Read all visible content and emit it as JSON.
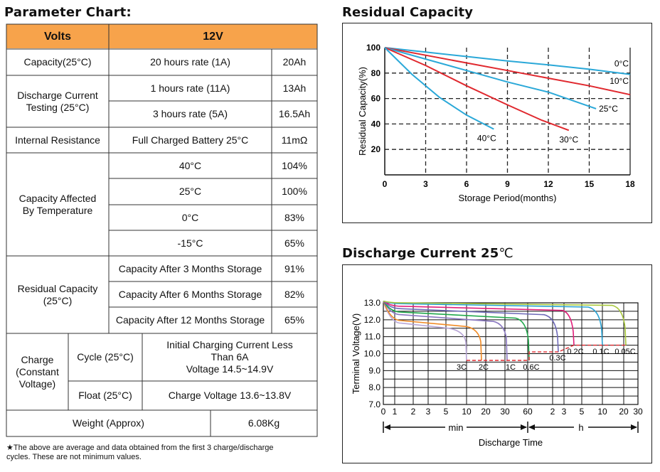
{
  "parameter_chart": {
    "title": "Parameter Chart:",
    "header": {
      "col1": "Volts",
      "col2": "12V"
    },
    "capacity": {
      "label": "Capacity(25°C)",
      "condition": "20 hours rate (1A)",
      "value": "20Ah"
    },
    "discharge_current": {
      "label": "Discharge Current\nTesting (25°C)",
      "rows": [
        {
          "condition": "1 hours rate (11A)",
          "value": "13Ah"
        },
        {
          "condition": "3 hours rate (5A)",
          "value": "16.5Ah"
        }
      ]
    },
    "internal_resistance": {
      "label": "Internal Resistance",
      "condition": "Full Charged Battery 25°C",
      "value": "11mΩ"
    },
    "temperature": {
      "label": "Capacity Affected\nBy Temperature",
      "rows": [
        {
          "condition": "40°C",
          "value": "104%"
        },
        {
          "condition": "25°C",
          "value": "100%"
        },
        {
          "condition": "0°C",
          "value": "83%"
        },
        {
          "condition": "-15°C",
          "value": "65%"
        }
      ]
    },
    "residual": {
      "label": "Residual Capacity\n(25°C)",
      "rows": [
        {
          "condition": "Capacity After 3 Months Storage",
          "value": "91%"
        },
        {
          "condition": "Capacity After 6 Months Storage",
          "value": "82%"
        },
        {
          "condition": "Capacity After 12 Months Storage",
          "value": "65%"
        }
      ]
    },
    "charge": {
      "label": "Charge\n(Constant\nVoltage)",
      "cycle_label": "Cycle (25°C)",
      "cycle_value": "Initial Charging Current Less\nThan 6A\nVoltage 14.5~14.9V",
      "float_label": "Float (25°C)",
      "float_value": "Charge Voltage 13.6~13.8V"
    },
    "weight": {
      "label": "Weight (Approx)",
      "value": "6.08Kg"
    },
    "footnote": "★The above are average and data obtained from the first 3 charge/discharge\n  cycles. These are not minimum values.",
    "colors": {
      "header_bg": "#f7a34b",
      "border": "#333333"
    }
  },
  "chart_data": [
    {
      "type": "line",
      "title": "Residual Capacity",
      "xlabel": "Storage Period(months)",
      "ylabel": "Residual Capacity(%)",
      "xlim": [
        0,
        18
      ],
      "ylim": [
        0,
        100
      ],
      "xticks": [
        0,
        3,
        6,
        9,
        12,
        15,
        18
      ],
      "yticks": [
        20,
        40,
        60,
        80,
        100
      ],
      "grid": "dashed",
      "series": [
        {
          "name": "0°C",
          "color": "#2aa8d8",
          "x": [
            0,
            3,
            6,
            9,
            12,
            15,
            18
          ],
          "y": [
            100,
            96.5,
            93,
            89.5,
            86.5,
            83,
            79
          ]
        },
        {
          "name": "10°C",
          "color": "#e0282e",
          "x": [
            0,
            3,
            6,
            9,
            12,
            15,
            18
          ],
          "y": [
            100,
            94,
            88,
            82,
            76,
            70,
            63
          ]
        },
        {
          "name": "25°C",
          "color": "#2aa8d8",
          "x": [
            0,
            3,
            6,
            9,
            12,
            15.5
          ],
          "y": [
            100,
            91,
            82,
            73,
            65,
            52
          ]
        },
        {
          "name": "30°C",
          "color": "#e0282e",
          "x": [
            0,
            3,
            6,
            9,
            11.5,
            13.5
          ],
          "y": [
            100,
            86,
            70,
            55,
            43,
            35
          ]
        },
        {
          "name": "40°C",
          "color": "#2aa8d8",
          "x": [
            0,
            2,
            4,
            6,
            8
          ],
          "y": [
            100,
            79,
            61,
            47,
            36
          ]
        }
      ]
    },
    {
      "type": "line",
      "title": "Discharge Current 25",
      "title_unit": "℃",
      "xlabel": "Discharge Time",
      "ylabel": "Terminal Voltage(V)",
      "ylim": [
        7.0,
        13.0
      ],
      "yticks": [
        "7.0",
        "8.0",
        "9.0",
        "10.0",
        "11.0",
        "12.0",
        "13.0"
      ],
      "xticks": [
        "0",
        "1",
        "2",
        "3",
        "5",
        "10",
        "20",
        "30",
        "60",
        "2",
        "3",
        "5",
        "10",
        "20",
        "30"
      ],
      "x_units": [
        "min",
        "h"
      ],
      "grid": "solid",
      "series": [
        {
          "name": "3C",
          "color": "#b8a6d6",
          "end_v": 9.6
        },
        {
          "name": "2C",
          "color": "#f08a24",
          "end_v": 9.6
        },
        {
          "name": "1C",
          "color": "#8a78c0",
          "end_v": 9.6
        },
        {
          "name": "0.6C",
          "color": "#1fa84a",
          "end_v": 9.6
        },
        {
          "name": "0.3C",
          "color": "#6e6ab8",
          "end_v": 10.1
        },
        {
          "name": "0.2C",
          "color": "#e0207a",
          "end_v": 10.5
        },
        {
          "name": "0.1C",
          "color": "#29a3d4",
          "end_v": 10.5
        },
        {
          "name": "0.05C",
          "color": "#a8c83c",
          "end_v": 10.5
        }
      ],
      "cutoff_color": "#e0282e"
    }
  ]
}
